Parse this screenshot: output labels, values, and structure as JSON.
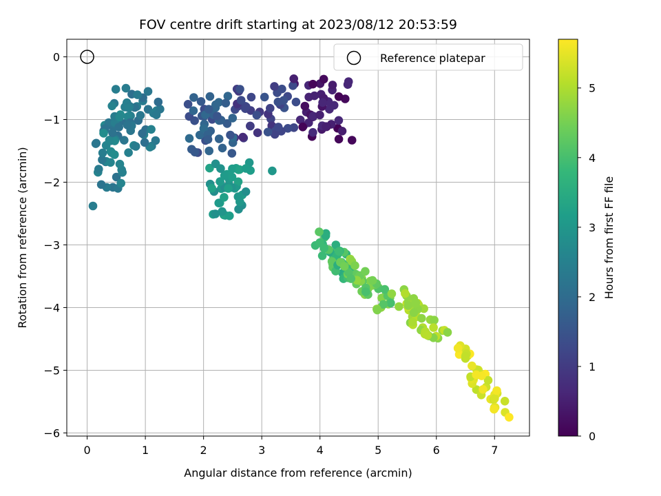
{
  "chart_data": {
    "type": "scatter",
    "title": "FOV centre drift starting at 2023/08/12 20:53:59",
    "xlabel": "Angular distance from reference (arcmin)",
    "ylabel": "Rotation from reference (arcmin)",
    "xlim": [
      -0.35,
      7.6
    ],
    "ylim": [
      -6.05,
      0.28
    ],
    "xticks": [
      0,
      1,
      2,
      3,
      4,
      5,
      6,
      7
    ],
    "yticks": [
      0,
      -1,
      -2,
      -3,
      -4,
      -5,
      -6
    ],
    "grid": true,
    "legend": {
      "placement": "top-right",
      "entries": [
        "Reference platepar"
      ]
    },
    "reference_point": {
      "x": 0,
      "y": 0
    },
    "colorbar": {
      "label": "Hours from first FF file",
      "range": [
        0,
        5.7
      ],
      "ticks": [
        0,
        1,
        2,
        3,
        4,
        5
      ],
      "colormap": "viridis"
    },
    "point_groups": [
      {
        "hours": [
          0.0,
          0.7
        ],
        "x": [
          3.5,
          4.6
        ],
        "y": [
          -1.35,
          -0.35
        ]
      },
      {
        "hours": [
          0.7,
          1.5
        ],
        "x": [
          2.4,
          3.7
        ],
        "y": [
          -1.3,
          -0.45
        ]
      },
      {
        "hours": [
          1.3,
          2.0
        ],
        "x": [
          1.7,
          2.6
        ],
        "y": [
          -1.55,
          -0.6
        ]
      },
      {
        "hours": [
          2.0,
          2.6
        ],
        "x": [
          0.2,
          1.4
        ],
        "y": [
          -1.45,
          -0.5
        ]
      },
      {
        "hours": [
          2.1,
          2.8
        ],
        "x": [
          0.1,
          0.8
        ],
        "y": [
          -2.1,
          -0.7
        ]
      },
      {
        "hours": [
          2.8,
          3.3
        ],
        "x": [
          2.05,
          2.85
        ],
        "y": [
          -2.55,
          -1.65
        ]
      },
      {
        "hours": [
          3.5,
          4.3
        ],
        "x": [
          3.85,
          4.7
        ],
        "y": [
          -3.6,
          -2.8
        ]
      },
      {
        "hours": [
          4.0,
          4.8
        ],
        "x": [
          4.3,
          5.3
        ],
        "y": [
          -4.1,
          -3.2
        ]
      },
      {
        "hours": [
          4.6,
          5.2
        ],
        "x": [
          5.2,
          6.3
        ],
        "y": [
          -4.7,
          -3.7
        ]
      },
      {
        "hours": [
          5.1,
          5.7
        ],
        "x": [
          6.1,
          7.25
        ],
        "y": [
          -5.75,
          -4.4
        ]
      }
    ],
    "extra_points": [
      {
        "x": 0.1,
        "y": -2.38,
        "hours": 2.4
      },
      {
        "x": 3.18,
        "y": -1.82,
        "hours": 3.0
      },
      {
        "x": 4.55,
        "y": -1.33,
        "hours": 0.1
      },
      {
        "x": 1.85,
        "y": -1.52,
        "hours": 1.6
      },
      {
        "x": 3.55,
        "y": -0.35,
        "hours": 0.5
      },
      {
        "x": 7.25,
        "y": -5.75,
        "hours": 5.7
      }
    ]
  }
}
